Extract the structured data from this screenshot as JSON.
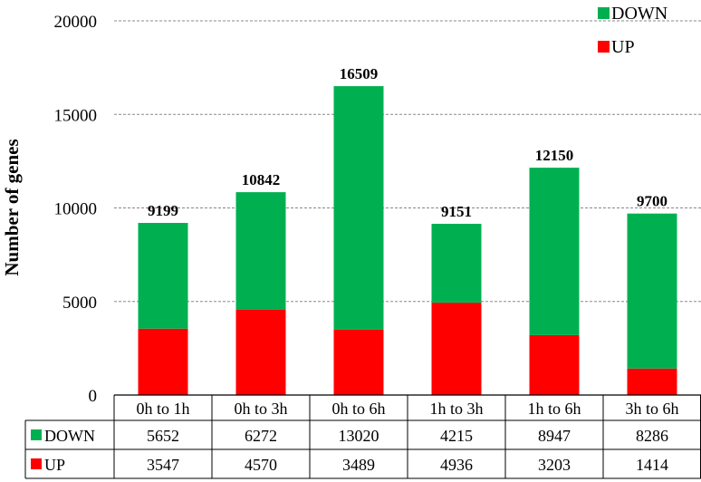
{
  "chart_data": {
    "type": "bar",
    "stacked": true,
    "categories": [
      "0h to 1h",
      "0h to 3h",
      "0h to 6h",
      "1h to 3h",
      "1h to 6h",
      "3h to 6h"
    ],
    "series": [
      {
        "name": "UP",
        "color": "#ff0000",
        "values": [
          3547,
          4570,
          3489,
          4936,
          3203,
          1414
        ]
      },
      {
        "name": "DOWN",
        "color": "#00b050",
        "values": [
          5652,
          6272,
          13020,
          4215,
          8947,
          8286
        ]
      }
    ],
    "totals": [
      9199,
      10842,
      16509,
      9151,
      12150,
      9700
    ],
    "ylabel": "Number of genes",
    "ylim": [
      0,
      20000
    ],
    "yticks": [
      0,
      5000,
      10000,
      15000,
      20000
    ],
    "grid": true,
    "legend_position": "top-right",
    "legend": [
      "DOWN",
      "UP"
    ],
    "data_table": {
      "rows": [
        {
          "label": "DOWN",
          "values": [
            "5652",
            "6272",
            "13020",
            "4215",
            "8947",
            "8286"
          ]
        },
        {
          "label": "UP",
          "values": [
            "3547",
            "4570",
            "3489",
            "4936",
            "3203",
            "1414"
          ]
        }
      ]
    }
  }
}
